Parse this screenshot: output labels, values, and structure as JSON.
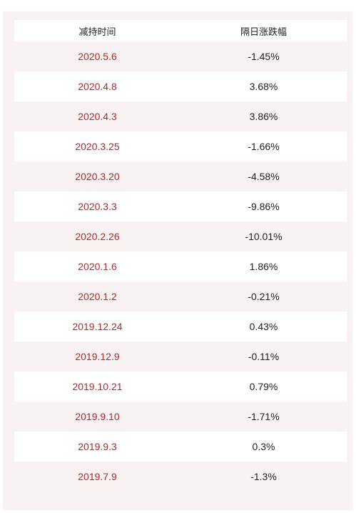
{
  "table": {
    "headers": [
      "减持时间",
      "隔日涨跌幅"
    ],
    "rows": [
      {
        "date": "2020.5.6",
        "change": "-1.45%"
      },
      {
        "date": "2020.4.8",
        "change": "3.68%"
      },
      {
        "date": "2020.4.3",
        "change": "3.86%"
      },
      {
        "date": "2020.3.25",
        "change": "-1.66%"
      },
      {
        "date": "2020.3.20",
        "change": "-4.58%"
      },
      {
        "date": "2020.3.3",
        "change": "-9.86%"
      },
      {
        "date": "2020.2.26",
        "change": "-10.01%"
      },
      {
        "date": "2020.1.6",
        "change": "1.86%"
      },
      {
        "date": "2020.1.2",
        "change": "-0.21%"
      },
      {
        "date": "2019.12.24",
        "change": "0.43%"
      },
      {
        "date": "2019.12.9",
        "change": "-0.11%"
      },
      {
        "date": "2019.10.21",
        "change": "0.79%"
      },
      {
        "date": "2019.9.10",
        "change": "-1.71%"
      },
      {
        "date": "2019.9.3",
        "change": "0.3%"
      },
      {
        "date": "2019.7.9",
        "change": "-1.3%"
      }
    ]
  },
  "colors": {
    "date_text": "#b22a2a",
    "value_text": "#222222",
    "stripe": "#f8f2f2"
  }
}
